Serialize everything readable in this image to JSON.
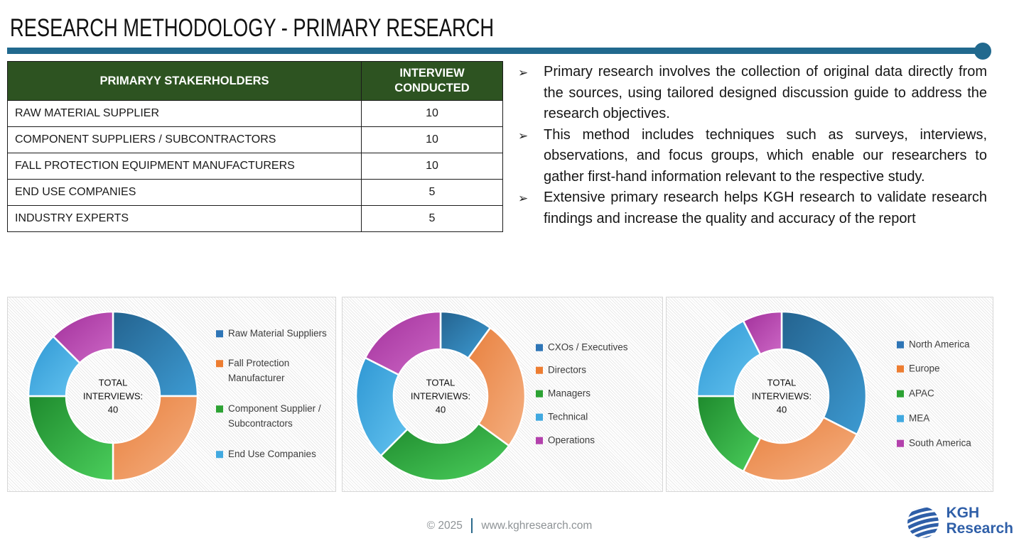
{
  "title": "RESEARCH METHODOLOGY - PRIMARY RESEARCH",
  "accent_color": "#21698E",
  "table": {
    "header_bg": "#2D5321",
    "headers": [
      "PRIMARYY STAKERHOLDERS",
      "INTERVIEW CONDUCTED"
    ],
    "rows": [
      {
        "stakeholder": "RAW MATERIAL SUPPLIER",
        "interviews": "10"
      },
      {
        "stakeholder": "COMPONENT SUPPLIERS / SUBCONTRACTORS",
        "interviews": "10"
      },
      {
        "stakeholder": "FALL PROTECTION EQUIPMENT MANUFACTURERS",
        "interviews": "10"
      },
      {
        "stakeholder": "END USE COMPANIES",
        "interviews": "5"
      },
      {
        "stakeholder": "INDUSTRY EXPERTS",
        "interviews": "5"
      }
    ]
  },
  "bullets": [
    "Primary research involves the collection of original data directly from the sources, using tailored designed discussion guide to address the research objectives.",
    "This method includes techniques such as surveys, interviews, observations, and focus groups, which enable our researchers to gather first-hand information relevant to the respective study.",
    "Extensive primary research helps KGH research to validate research findings and increase the quality and accuracy of the report"
  ],
  "bullet_marker": "➢",
  "palette": [
    {
      "name": "blue",
      "legend": "#2E75B6",
      "grad": [
        "#24638F",
        "#3D9BD3"
      ]
    },
    {
      "name": "orange",
      "legend": "#ED7D31",
      "grad": [
        "#E8803E",
        "#F5B183"
      ]
    },
    {
      "name": "green",
      "legend": "#2CA233",
      "grad": [
        "#1E8A2D",
        "#4BCE5C"
      ]
    },
    {
      "name": "light-blue",
      "legend": "#41A9E0",
      "grad": [
        "#2F97D3",
        "#63C3F0"
      ]
    },
    {
      "name": "magenta",
      "legend": "#B341AC",
      "grad": [
        "#A2309B",
        "#CC67C5"
      ]
    }
  ],
  "chart_data": [
    {
      "type": "donut",
      "title": "Interviews by stakeholder",
      "total": 40,
      "center_lines": [
        "TOTAL",
        "INTERVIEWS:",
        "40"
      ],
      "segments": [
        {
          "label": "Raw Material Suppliers",
          "value": 10,
          "show_in_legend": true
        },
        {
          "label": "Fall Protection Manufacturer",
          "value": 10,
          "show_in_legend": true
        },
        {
          "label": "Component Supplier / Subcontractors",
          "value": 10,
          "show_in_legend": true
        },
        {
          "label": "End Use Companies",
          "value": 5,
          "show_in_legend": true
        },
        {
          "label": "",
          "value": 5,
          "show_in_legend": false
        }
      ]
    },
    {
      "type": "donut",
      "title": "Interviews by designation",
      "total": 40,
      "center_lines": [
        "TOTAL",
        "INTERVIEWS:",
        "40"
      ],
      "segments": [
        {
          "label": "CXOs / Executives",
          "value": 4,
          "show_in_legend": true
        },
        {
          "label": "Directors",
          "value": 10,
          "show_in_legend": true
        },
        {
          "label": "Managers",
          "value": 11,
          "show_in_legend": true
        },
        {
          "label": "Technical",
          "value": 8,
          "show_in_legend": true
        },
        {
          "label": "Operations",
          "value": 7,
          "show_in_legend": true
        }
      ]
    },
    {
      "type": "donut",
      "title": "Interviews by region",
      "total": 40,
      "center_lines": [
        "TOTAL",
        "INTERVIEWS:",
        "40"
      ],
      "segments": [
        {
          "label": "North America",
          "value": 13,
          "show_in_legend": true
        },
        {
          "label": "Europe",
          "value": 10,
          "show_in_legend": true
        },
        {
          "label": "APAC",
          "value": 7,
          "show_in_legend": true
        },
        {
          "label": "MEA",
          "value": 7,
          "show_in_legend": true
        },
        {
          "label": "South America",
          "value": 3,
          "show_in_legend": true
        }
      ]
    }
  ],
  "footer": {
    "copyright": "© 2025",
    "website": "www.kghresearch.com",
    "logo_line1": "KGH",
    "logo_line2": "Research",
    "logo_color": "#2F5FA8"
  }
}
